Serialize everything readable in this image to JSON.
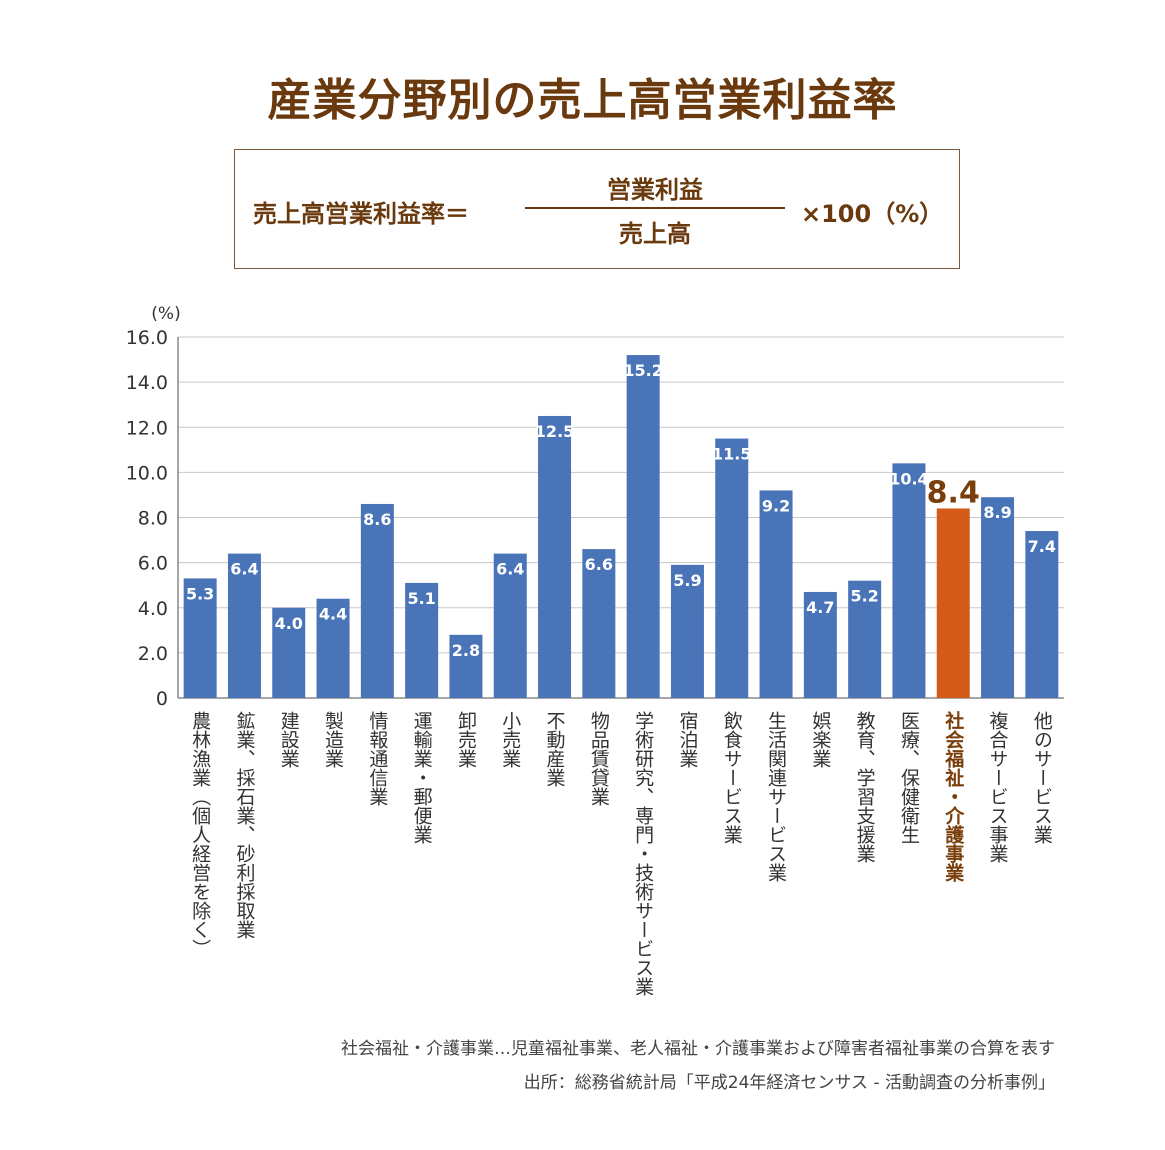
{
  "title": "産業分野別の売上高営業利益率",
  "formula": {
    "lhs": "売上高営業利益率＝",
    "numerator": "営業利益",
    "denominator": "売上高",
    "rhs": "×100（%）"
  },
  "chart_data": {
    "type": "bar",
    "y_unit_label": "(%)",
    "ylim": [
      0,
      16
    ],
    "yticks": [
      "0",
      "2.0",
      "4.0",
      "6.0",
      "8.0",
      "10.0",
      "12.0",
      "14.0",
      "16.0"
    ],
    "grid": true,
    "categories": [
      "農林漁業（個人経営を除く）",
      "鉱業、採石業、砂利採取業",
      "建設業",
      "製造業",
      "情報通信業",
      "運輸業・郵便業",
      "卸売業",
      "小売業",
      "不動産業",
      "物品賃貸業",
      "学術研究、専門・技術サービス業",
      "宿泊業",
      "飲食サービス業",
      "生活関連サービス業",
      "娯楽業",
      "教育、学習支援業",
      "医療、保健衛生",
      "社会福祉・介護事業",
      "複合サービス事業",
      "他のサービス業"
    ],
    "values": [
      5.3,
      6.4,
      4.0,
      4.4,
      8.6,
      5.1,
      2.8,
      6.4,
      12.5,
      6.6,
      15.2,
      5.9,
      11.5,
      9.2,
      4.7,
      5.2,
      10.4,
      8.4,
      8.9,
      7.4
    ],
    "value_labels": [
      "5.3",
      "6.4",
      "4.0",
      "4.4",
      "8.6",
      "5.1",
      "2.8",
      "6.4",
      "12.5",
      "6.6",
      "15.2",
      "5.9",
      "11.5",
      "9.2",
      "4.7",
      "5.2",
      "10.4",
      "8.4",
      "8.9",
      "7.4"
    ],
    "highlight_index": 17,
    "colors": {
      "bar": "#4a74b8",
      "highlight": "#d45a1a",
      "highlight_text": "#7a3e0a",
      "title": "#6a3a0e",
      "grid": "#c8c8c8",
      "axis": "#888888"
    }
  },
  "notes": [
    "社会福祉・介護事業…児童福祉事業、老人福祉・介護事業および障害者福祉事業の合算を表す",
    "出所：総務省統計局「平成24年経済センサス - 活動調査の分析事例」"
  ]
}
